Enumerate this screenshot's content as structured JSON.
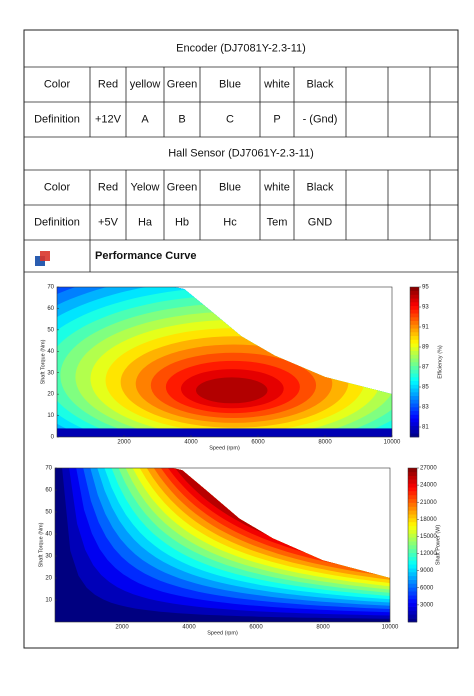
{
  "encoder_table": {
    "title": "Encoder  (DJ7081Y-2.3-11)",
    "rows": [
      [
        "Color",
        "Red",
        "yellow",
        "Green",
        "Blue",
        "white",
        "Black"
      ],
      [
        "Definition",
        "+12V",
        "A",
        "B",
        "C",
        "P",
        "-  (Gnd)"
      ]
    ]
  },
  "hall_table": {
    "title": "Hall Sensor   (DJ7061Y-2.3-11)",
    "rows": [
      [
        "Color",
        "Red",
        "Yelow",
        "Green",
        "Blue",
        "white",
        "Black"
      ],
      [
        "Definition",
        "+5V",
        "Ha",
        "Hb",
        "Hc",
        "Tem",
        "GND"
      ]
    ]
  },
  "performance": {
    "title": "Performance Curve"
  },
  "chart_data": [
    {
      "type": "contour",
      "x_label": "Speed (rpm)",
      "y_label": "Shaft Torque (Nm)",
      "colorbar_label": "Efficiency (%)",
      "xlim": [
        0,
        10000
      ],
      "xticks": [
        2000,
        4000,
        6000,
        8000,
        10000
      ],
      "ylim": [
        0,
        70
      ],
      "yticks": [
        0,
        10,
        20,
        30,
        40,
        50,
        60,
        70
      ],
      "clim": [
        80,
        95
      ],
      "cticks": [
        81,
        83,
        85,
        87,
        89,
        91,
        93,
        95
      ]
    },
    {
      "type": "contour",
      "x_label": "Speed (rpm)",
      "y_label": "Shaft Torque (Nm)",
      "colorbar_label": "Shaft Power (W)",
      "xlim": [
        0,
        10000
      ],
      "xticks": [
        2000,
        4000,
        6000,
        8000,
        10000
      ],
      "ylim": [
        0,
        70
      ],
      "yticks": [
        10,
        20,
        30,
        40,
        50,
        60,
        70
      ],
      "clim": [
        0,
        27000
      ],
      "cticks": [
        3000,
        6000,
        9000,
        12000,
        15000,
        18000,
        21000,
        24000,
        27000
      ]
    }
  ]
}
